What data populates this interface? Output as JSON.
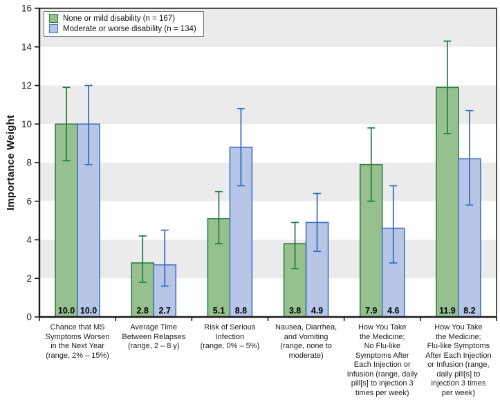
{
  "colors": {
    "green_fill": "#96c08d",
    "green_border": "#2e7d43",
    "green_error": "#1e7b40",
    "blue_fill": "#b7c6e6",
    "blue_border": "#4272bf",
    "blue_error": "#2f66c0",
    "band_gray": "#ebebeb",
    "axis": "#1a1a1a",
    "value_label": "#000000"
  },
  "chart_data": {
    "type": "bar",
    "title": "",
    "ylabel": "Importance Weight",
    "xlabel": "",
    "ylim": [
      0,
      16
    ],
    "yticks": [
      0,
      2,
      4,
      6,
      8,
      10,
      12,
      14,
      16
    ],
    "grid": "alternating gray horizontal bands every 2 units",
    "band_values": [
      [
        2,
        4
      ],
      [
        6,
        8
      ],
      [
        10,
        12
      ],
      [
        14,
        16
      ]
    ],
    "legend_position": "top-left",
    "categories": [
      "Chance that MS\nSymptoms Worsen\nin the Next Year\n(range, 2% – 15%)",
      "Average Time\nBetween Relapses\n(range, 2 – 8 y)",
      "Risk of Serious\nInfection\n(range, 0% – 5%)",
      "Nausea, Diarrhea,\nand Vomiting\n(range, none to\nmoderate)",
      "How You Take\nthe Medicine;\nNo Flu-like\nSymptoms After\nEach Injection or\nInfusion (range, daily\npill[s] to injection 3\ntimes per week)",
      "How You Take\nthe Medicine;\nFlu-like Symptoms\nAfter Each Injection\nor Infusion (range,\ndaily pill[s] to\ninjection 3 times\nper week)"
    ],
    "series": [
      {
        "name": "None or mild disability (n = 167)",
        "color_key": "green",
        "values": [
          10.0,
          2.8,
          5.1,
          3.8,
          7.9,
          11.9
        ],
        "value_labels": [
          "10.0",
          "2.8",
          "5.1",
          "3.8",
          "7.9",
          "11.9"
        ],
        "error_low": [
          8.1,
          1.8,
          3.8,
          2.5,
          6.0,
          9.5
        ],
        "error_high": [
          11.9,
          4.2,
          6.5,
          4.9,
          9.8,
          14.3
        ]
      },
      {
        "name": "Moderate or worse disability (n = 134)",
        "color_key": "blue",
        "values": [
          10.0,
          2.7,
          8.8,
          4.9,
          4.6,
          8.2
        ],
        "value_labels": [
          "10.0",
          "2.7",
          "8.8",
          "4.9",
          "4.6",
          "8.2"
        ],
        "error_low": [
          7.9,
          1.6,
          6.8,
          3.4,
          2.8,
          5.8
        ],
        "error_high": [
          12.0,
          4.5,
          10.8,
          6.4,
          6.8,
          10.7
        ]
      }
    ]
  }
}
